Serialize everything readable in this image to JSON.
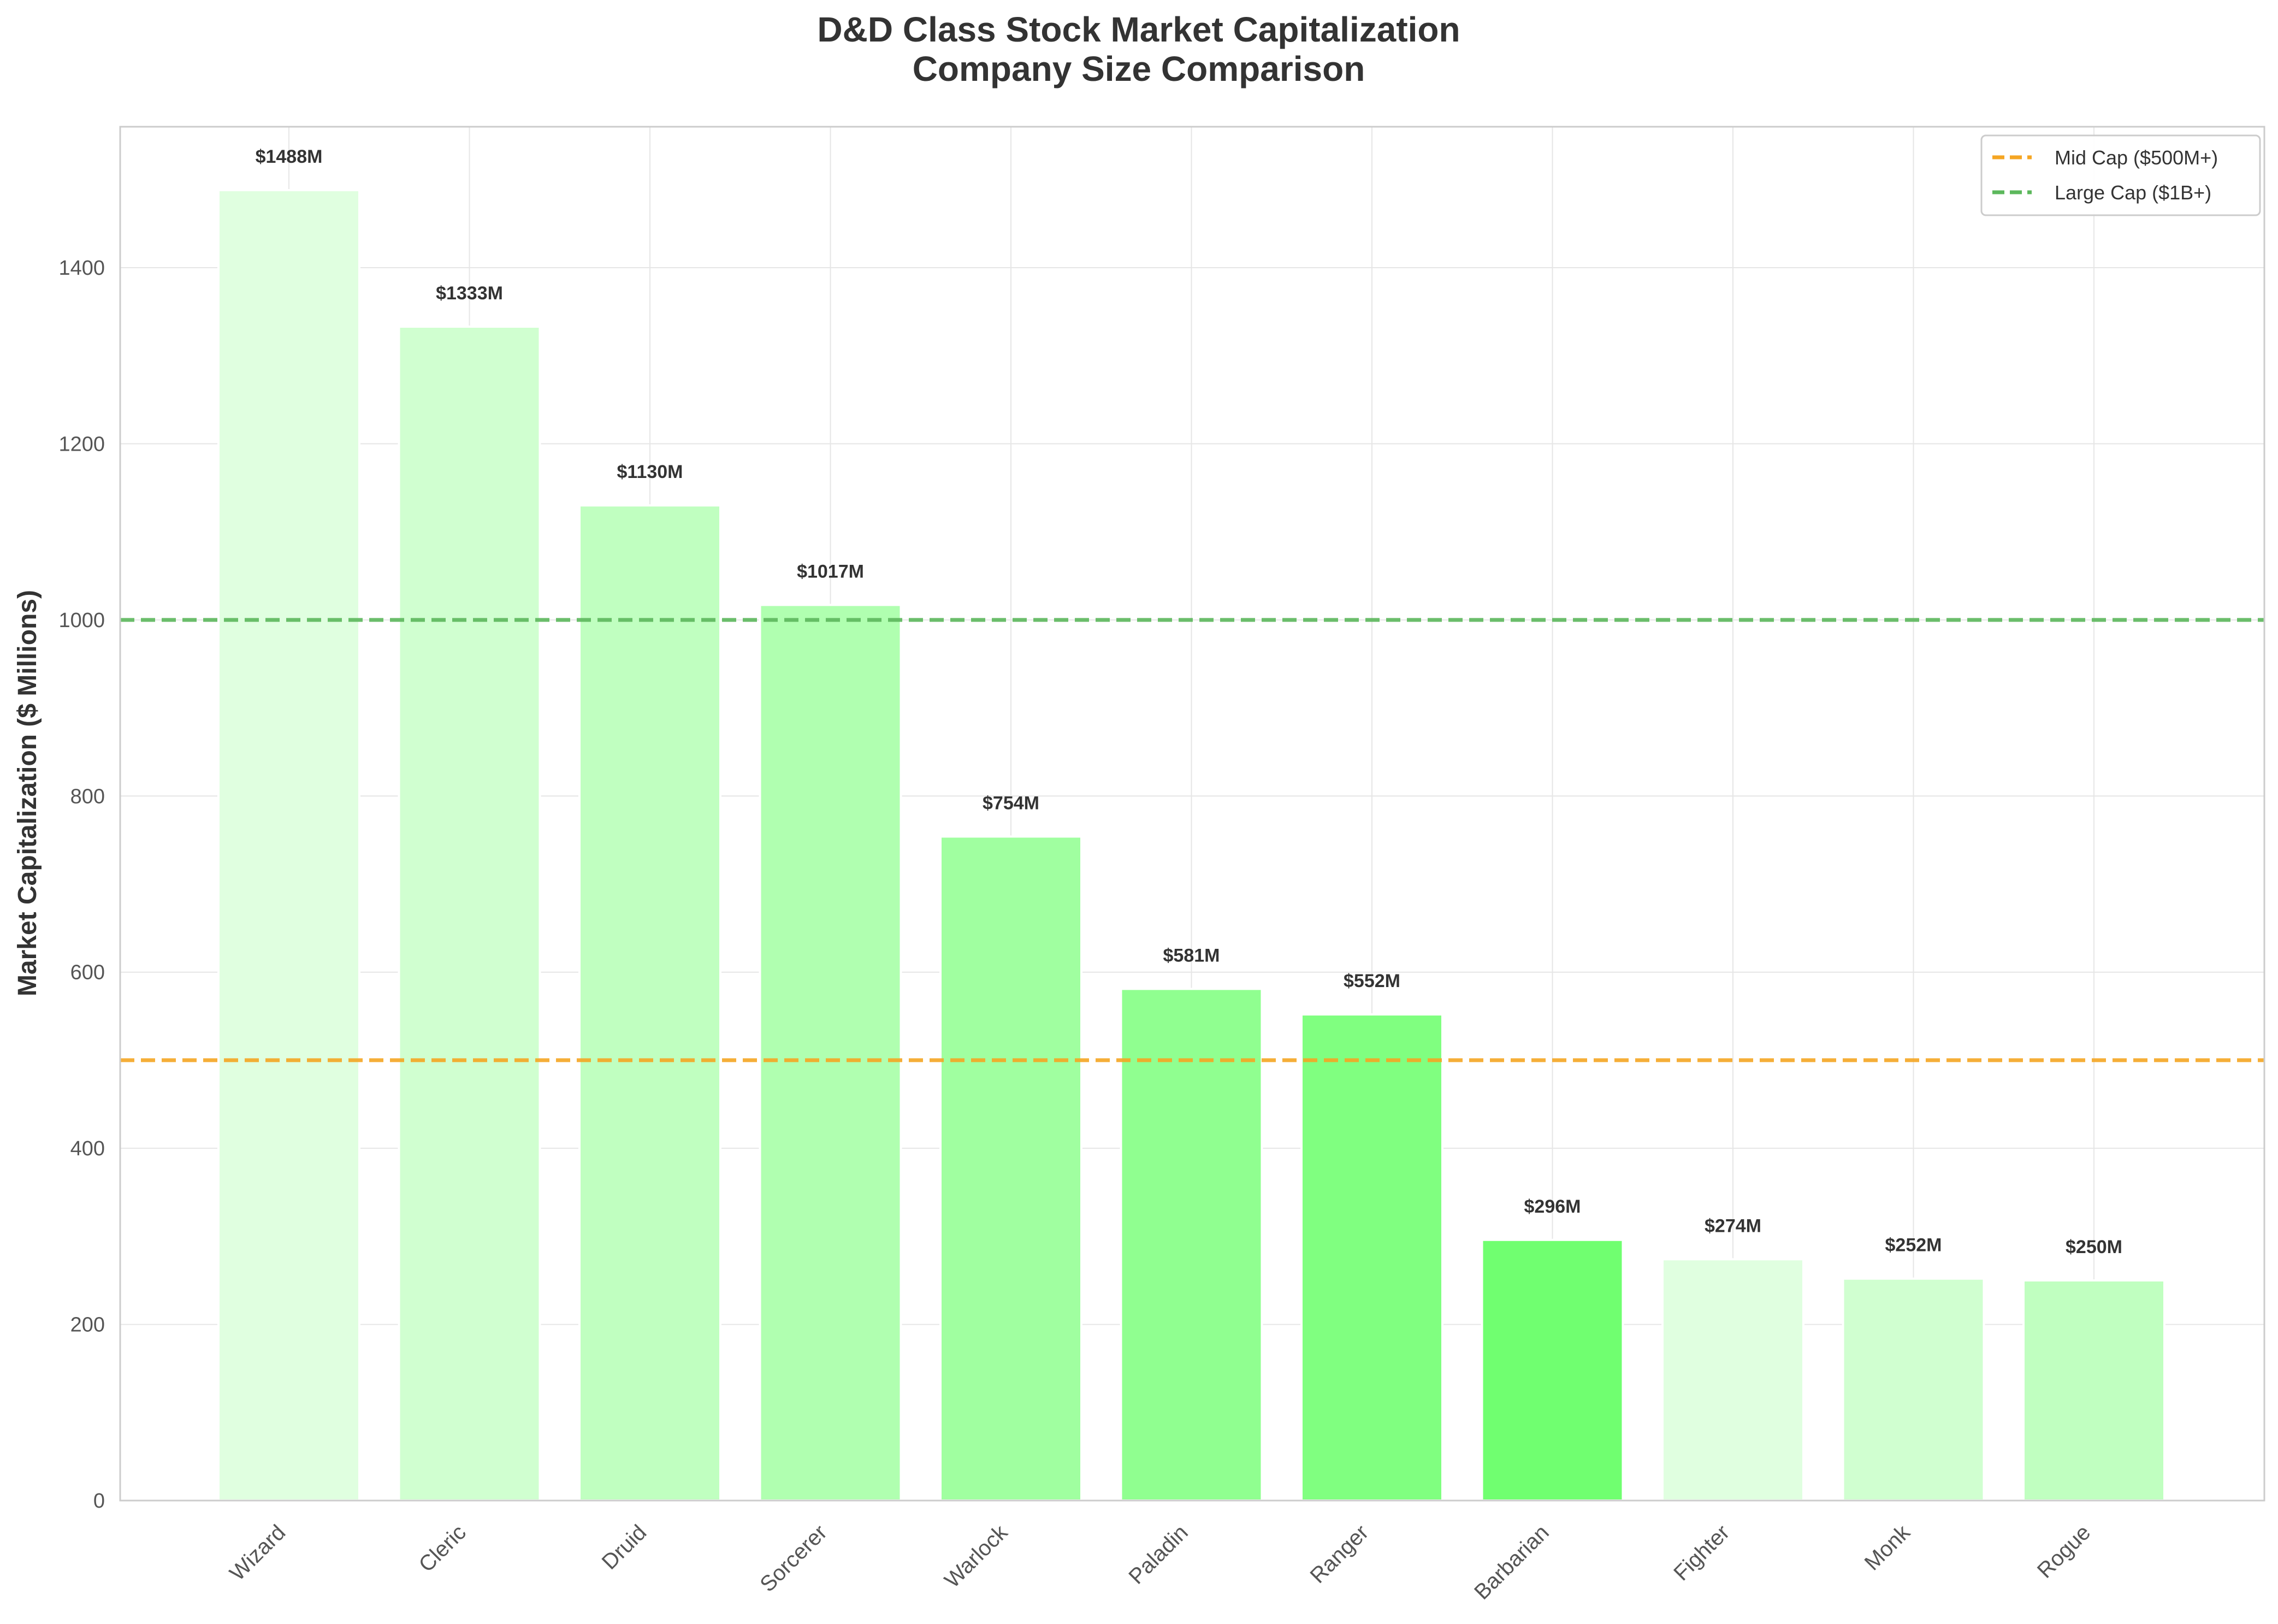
{
  "chart_data": {
    "type": "bar",
    "title_lines": [
      "D&D Class Stock Market Capitalization",
      "Company Size Comparison"
    ],
    "xlabel": "",
    "ylabel": "Market Capitalization ($ Millions)",
    "ylim": [
      0,
      1560
    ],
    "yticks": [
      0,
      200,
      400,
      600,
      800,
      1000,
      1200,
      1400
    ],
    "grid": true,
    "legend_position": "top-right",
    "categories": [
      "Wizard",
      "Cleric",
      "Druid",
      "Sorcerer",
      "Warlock",
      "Paladin",
      "Ranger",
      "Barbarian",
      "Fighter",
      "Monk",
      "Rogue"
    ],
    "values": [
      1488,
      1333,
      1130,
      1017,
      754,
      581,
      552,
      296,
      274,
      252,
      250
    ],
    "value_labels": [
      "$1488M",
      "$1333M",
      "$1130M",
      "$1017M",
      "$754M",
      "$581M",
      "$552M",
      "$296M",
      "$274M",
      "$252M",
      "$250M"
    ],
    "bar_colors": [
      "#e0ffe0",
      "#d0ffd0",
      "#c0ffc0",
      "#b0ffb0",
      "#a0ffa0",
      "#90ff90",
      "#80ff80",
      "#70ff70",
      "#e0ffe0",
      "#d0ffd0",
      "#c0ffc0"
    ],
    "reference_lines": [
      {
        "name": "Mid Cap ($500M+)",
        "value": 500,
        "color": "#f5a623"
      },
      {
        "name": "Large Cap ($1B+)",
        "value": 1000,
        "color": "#5cb85c"
      }
    ]
  }
}
